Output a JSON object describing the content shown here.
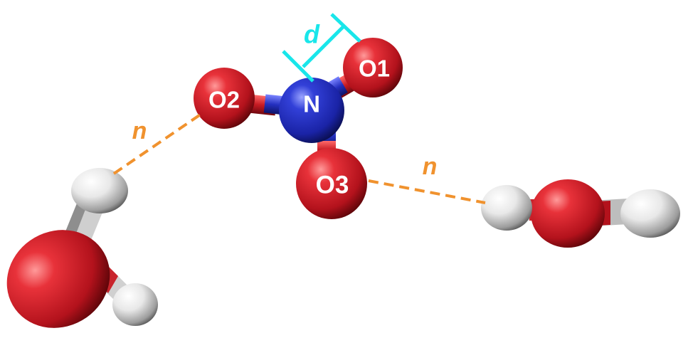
{
  "atoms": {
    "N": "N",
    "O1": "O1",
    "O2": "O2",
    "O3": "O3"
  },
  "annotations": {
    "distance_d": "d",
    "hbond_left": "n",
    "hbond_right": "n"
  },
  "colors": {
    "oxygen": "#d8242e",
    "nitrogen": "#2a36c8",
    "hydrogen": "#e6e6e6",
    "hbond": "#f0922e",
    "distance_marker": "#19e6ea"
  }
}
